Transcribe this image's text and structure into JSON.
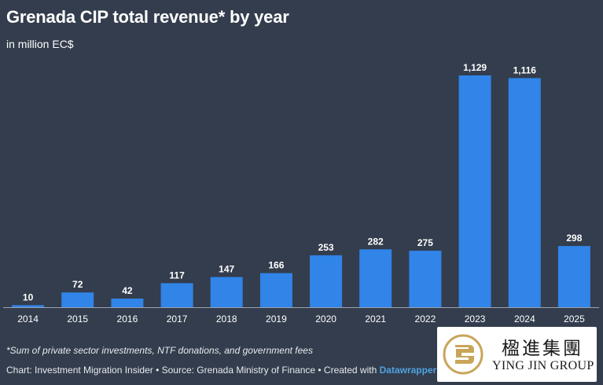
{
  "title": "Grenada CIP total revenue* by year",
  "subtitle": "in million EC$",
  "chart_data": {
    "type": "bar",
    "title": "Grenada CIP total revenue* by year",
    "ylabel": "in million EC$",
    "xlabel": "",
    "categories": [
      "2014",
      "2015",
      "2016",
      "2017",
      "2018",
      "2019",
      "2020",
      "2021",
      "2022",
      "2023",
      "2024",
      "2025"
    ],
    "values": [
      10,
      72,
      42,
      117,
      147,
      166,
      253,
      282,
      275,
      1129,
      1116,
      298
    ],
    "value_labels": [
      "10",
      "72",
      "42",
      "117",
      "147",
      "166",
      "253",
      "282",
      "275",
      "1,129",
      "1,116",
      "298"
    ],
    "ylim": [
      0,
      1129
    ],
    "grid": false,
    "bar_color": "#3184e8"
  },
  "footnote": "*Sum of private sector investments, NTF donations, and government fees",
  "credits": {
    "text": "Chart: Investment Migration Insider • Source: Grenada Ministry of Finance • Created with ",
    "brand": "Datawrapper"
  },
  "logo": {
    "chinese": "楹進集團",
    "english": "YING JIN GROUP",
    "color": "#c9a55a"
  },
  "colors": {
    "background": "#333d4d",
    "bar": "#3184e8",
    "baseline": "#9aa3b0"
  }
}
